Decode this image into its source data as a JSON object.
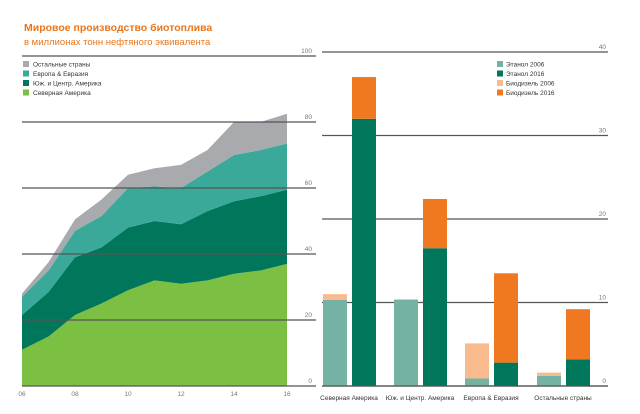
{
  "header": {
    "title": "Мировое производство биотоплива",
    "subtitle": "в миллионах тонн нефтяного эквивалента"
  },
  "chart_data": [
    {
      "type": "area",
      "stacked": true,
      "title": "Мировое производство биотоплива",
      "subtitle": "в миллионах тонн нефтяного эквивалента",
      "x": [
        "06",
        "07",
        "08",
        "09",
        "10",
        "11",
        "12",
        "13",
        "14",
        "15",
        "16"
      ],
      "xticks": [
        "06",
        "08",
        "10",
        "12",
        "14",
        "16"
      ],
      "ylim": [
        0,
        100
      ],
      "yticks": [
        "0",
        "20",
        "40",
        "60",
        "80",
        "100"
      ],
      "grid": true,
      "legend_position": "top-left",
      "series": [
        {
          "name": "Северная Америка",
          "color": "#7bc043",
          "values": [
            11,
            15,
            21.5,
            25,
            29,
            32,
            31,
            32,
            34,
            35,
            37
          ]
        },
        {
          "name": "Юж. и Центр. Америка",
          "color": "#00765a",
          "values": [
            10.5,
            13.5,
            17.5,
            17,
            19,
            18,
            18,
            21,
            22,
            22.5,
            22.5
          ]
        },
        {
          "name": "Европа & Евразия",
          "color": "#3aa99a",
          "values": [
            5.5,
            6.5,
            8,
            9.5,
            12,
            10.5,
            11,
            12,
            14,
            14,
            14
          ]
        },
        {
          "name": "Остальные страны",
          "color": "#a9aaad",
          "values": [
            1,
            2.5,
            3.5,
            5,
            4,
            5.5,
            7,
            6.5,
            10,
            8.5,
            9
          ]
        }
      ],
      "legend_order": [
        "Остальные страны",
        "Европа & Евразия",
        "Юж. и Центр. Америка",
        "Северная Америка"
      ]
    },
    {
      "type": "bar",
      "stacked": true,
      "categories": [
        "Северная Америка",
        "Юж. и Центр. Америка",
        "Европа & Евразия",
        "Остальные страны"
      ],
      "ylim": [
        0,
        40
      ],
      "yticks": [
        "0",
        "10",
        "20",
        "30",
        "40"
      ],
      "grid": true,
      "legend_position": "top-right",
      "groups": [
        {
          "year": "2006",
          "series": [
            {
              "name": "Этанол 2006",
              "color": "#74b3a3",
              "values": [
                10.3,
                10.3,
                0.9,
                1.2
              ]
            },
            {
              "name": "Биодизель 2006",
              "color": "#f9bb8d",
              "values": [
                0.7,
                0.1,
                4.2,
                0.4
              ]
            }
          ]
        },
        {
          "year": "2016",
          "series": [
            {
              "name": "Этанол 2016",
              "color": "#00765a",
              "values": [
                32.0,
                16.5,
                2.8,
                3.2
              ]
            },
            {
              "name": "Биодизель 2016",
              "color": "#f07820",
              "values": [
                5.0,
                5.9,
                10.7,
                6.0
              ]
            }
          ]
        }
      ],
      "legend_order": [
        "Этанол 2006",
        "Этанол 2016",
        "Биодизель 2006",
        "Биодизель 2016"
      ]
    }
  ]
}
